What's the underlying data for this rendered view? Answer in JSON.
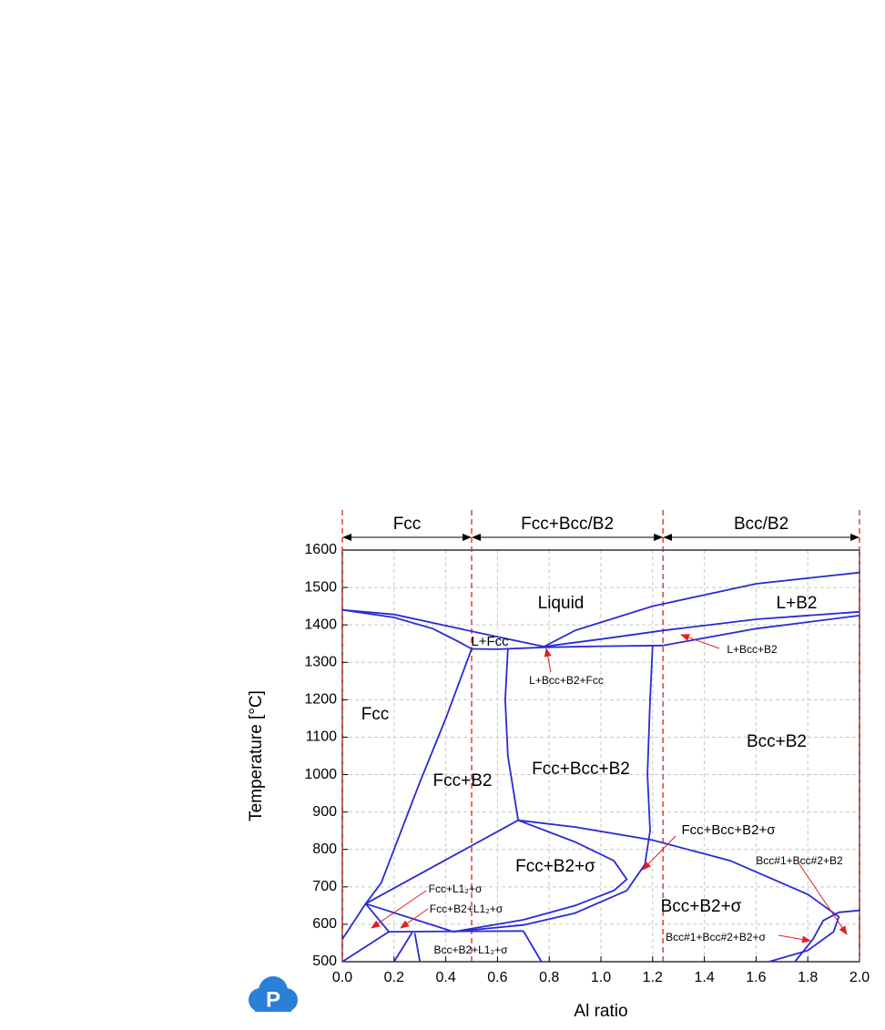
{
  "chart_data": {
    "type": "line",
    "x_label": "Al ratio",
    "y_label": "Temperature [°C]",
    "xlim": [
      0,
      2
    ],
    "ylim": [
      500,
      1600
    ],
    "xticks": [
      {
        "value": 0,
        "label": "0.0"
      },
      0.2,
      0.4,
      0.6,
      0.8,
      {
        "value": 1,
        "label": "1.0"
      },
      1.2,
      1.4,
      1.6,
      1.8,
      {
        "value": 2,
        "label": "2.0"
      }
    ],
    "yticks": [
      500,
      600,
      700,
      800,
      900,
      1000,
      1100,
      1200,
      1300,
      1400,
      1500,
      1600
    ],
    "grid": true,
    "structure_bounds": [
      0,
      0.5,
      1.24,
      2
    ],
    "structure_labels": [
      "Fcc",
      "Fcc+Bcc/B2",
      "Bcc/B2"
    ],
    "annotations": [
      "Liquid",
      "L+B2",
      "L+Fcc",
      "Fcc",
      "Fcc+B2",
      "Fcc+Bcc+B2",
      "Bcc+B2",
      "Fcc+B2+σ",
      "Bcc+B2+σ",
      "L+Bcc+B2+Fcc",
      "L+Bcc+B2",
      "Fcc+Bcc+B2+σ",
      "Bcc#1+Bcc#2+B2",
      "Bcc#1+Bcc#2+B2+σ",
      "Fcc+L1₂+σ",
      "Fcc+B2+L1₂+σ",
      "Bcc+B2+L1₂+σ"
    ],
    "series": [
      {
        "color": "#2a2ad6",
        "x": [
          0,
          0.2,
          0.4,
          0.6,
          0.78
        ],
        "values": [
          1440,
          1428,
          1398,
          1368,
          1342
        ]
      },
      {
        "color": "#2a2ad6",
        "x": [
          0,
          0.2,
          0.35,
          0.45,
          0.5
        ],
        "values": [
          1440,
          1420,
          1390,
          1355,
          1336
        ]
      },
      {
        "color": "#2a2ad6",
        "x": [
          0.78,
          0.9,
          1.2,
          1.6,
          2
        ],
        "values": [
          1342,
          1385,
          1450,
          1510,
          1540
        ]
      },
      {
        "color": "#2a2ad6",
        "x": [
          0.78,
          1,
          1.24,
          1.6,
          2
        ],
        "values": [
          1342,
          1362,
          1385,
          1415,
          1435
        ]
      },
      {
        "color": "#2a2ad6",
        "x": [
          1.24,
          1.6,
          2
        ],
        "values": [
          1345,
          1390,
          1425
        ]
      },
      {
        "color": "#2a2ad6",
        "x": [
          0.5,
          0.6,
          0.78,
          1,
          1.24
        ],
        "values": [
          1336,
          1335,
          1340,
          1343,
          1345
        ]
      },
      {
        "color": "#2a2ad6",
        "x": [
          0.5,
          0.4,
          0.3,
          0.2,
          0.15,
          0.09
        ],
        "values": [
          1336,
          1150,
          980,
          800,
          710,
          655
        ]
      },
      {
        "color": "#2a2ad6",
        "x": [
          0.64,
          0.63,
          0.64,
          0.68
        ],
        "values": [
          1335,
          1200,
          1050,
          878
        ]
      },
      {
        "color": "#2a2ad6",
        "x": [
          1.2,
          1.19,
          1.18,
          1.19,
          1.17
        ],
        "values": [
          1345,
          1200,
          1000,
          850,
          760
        ]
      },
      {
        "color": "#2a2ad6",
        "x": [
          0.68,
          0.9,
          1.2,
          1.5,
          1.8,
          1.92,
          1.9,
          1.8,
          1.65
        ],
        "values": [
          878,
          860,
          825,
          770,
          680,
          620,
          580,
          530,
          500
        ]
      },
      {
        "color": "#2a2ad6",
        "x": [
          0.68,
          0.9,
          1.05,
          1.1,
          1.05,
          0.9,
          0.7,
          0.43
        ],
        "values": [
          878,
          820,
          770,
          720,
          690,
          650,
          612,
          580
        ]
      },
      {
        "color": "#2a2ad6",
        "x": [
          1.17,
          1.1,
          0.9,
          0.7,
          0.43
        ],
        "values": [
          760,
          690,
          630,
          598,
          580
        ]
      },
      {
        "color": "#2a2ad6",
        "x": [
          0.09,
          0.68
        ],
        "values": [
          655,
          878
        ]
      },
      {
        "color": "#2a2ad6",
        "x": [
          0.09,
          0.43
        ],
        "values": [
          655,
          580
        ]
      },
      {
        "color": "#2a2ad6",
        "x": [
          0.09,
          0.18,
          0.7
        ],
        "values": [
          655,
          580,
          582
        ]
      },
      {
        "color": "#2a2ad6",
        "x": [
          0.7,
          0.77
        ],
        "values": [
          582,
          500
        ]
      },
      {
        "color": "#2a2ad6",
        "x": [
          0.28,
          0.3
        ],
        "values": [
          577,
          500
        ]
      },
      {
        "color": "#2a2ad6",
        "x": [
          0.27,
          0.2
        ],
        "values": [
          578,
          500
        ]
      },
      {
        "color": "#2a2ad6",
        "x": [
          0,
          0.09
        ],
        "values": [
          560,
          655
        ]
      },
      {
        "color": "#2a2ad6",
        "x": [
          0,
          0.18
        ],
        "values": [
          500,
          580
        ]
      },
      {
        "color": "#2a2ad6",
        "x": [
          1.75,
          1.82,
          1.86,
          1.92,
          2
        ],
        "values": [
          500,
          560,
          610,
          632,
          637
        ]
      }
    ]
  }
}
